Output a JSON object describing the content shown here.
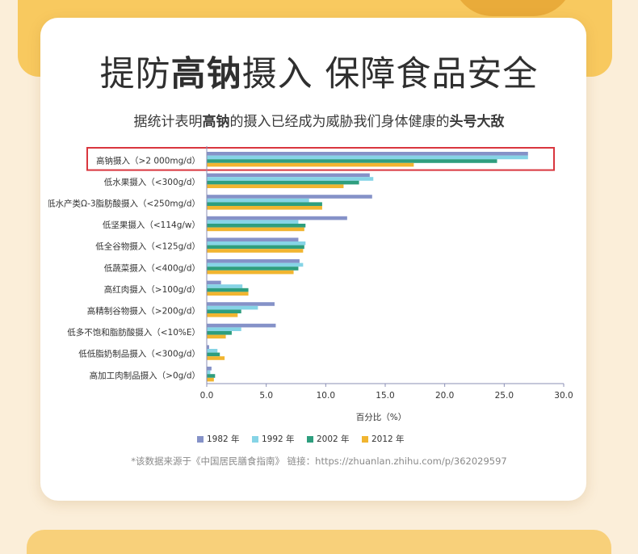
{
  "headline": {
    "part1": "提防",
    "highlight": "高钠",
    "part2": "摄入 保障食品安全"
  },
  "subline": {
    "part1": "据统计表明",
    "highlight1": "高钠",
    "part2": "的摄入已经成为威胁我们身体健康的",
    "highlight2": "头号大敌"
  },
  "source_note": "*该数据来源于《中国居民膳食指南》 链接：https://zhuanlan.zhihu.com/p/362029597",
  "colors": {
    "1982": "#8592c8",
    "1992": "#86d4e6",
    "2002": "#2e9e7e",
    "2012": "#f1b530",
    "highlight_box": "#d9363e",
    "axis": "#8b8fb5"
  },
  "chart_data": {
    "type": "bar",
    "orientation": "horizontal",
    "xlabel": "百分比（%）",
    "xlim": [
      0,
      30
    ],
    "xticks": [
      "0.0",
      "5.0",
      "10.0",
      "15.0",
      "20.0",
      "25.0",
      "30.0"
    ],
    "grid": false,
    "legend_position": "bottom",
    "highlighted_category": "高钠摄入（>2 000mg/d）",
    "categories": [
      "高钠摄入（>2 000mg/d）",
      "低水果摄入（<300g/d）",
      "低水产类Ω-3脂肪酸摄入（<250mg/d）",
      "低坚果摄入（<114g/w）",
      "低全谷物摄入（<125g/d）",
      "低蔬菜摄入（<400g/d）",
      "高红肉摄入（>100g/d）",
      "高精制谷物摄入（>200g/d）",
      "低多不饱和脂肪酸摄入（<10%E）",
      "低低脂奶制品摄入（<300g/d）",
      "高加工肉制品摄入（>0g/d）"
    ],
    "series": [
      {
        "name": "1982 年",
        "values": [
          27.0,
          13.7,
          13.9,
          11.8,
          7.7,
          7.8,
          1.2,
          5.7,
          5.8,
          0.2,
          0.4
        ]
      },
      {
        "name": "1992 年",
        "values": [
          27.0,
          14.0,
          8.6,
          7.7,
          8.3,
          8.1,
          3.0,
          4.3,
          2.9,
          0.9,
          0.3
        ]
      },
      {
        "name": "2002 年",
        "values": [
          24.4,
          12.8,
          9.7,
          8.3,
          8.2,
          7.7,
          3.5,
          2.9,
          2.1,
          1.1,
          0.7
        ]
      },
      {
        "name": "2012 年",
        "values": [
          17.4,
          11.5,
          9.7,
          8.2,
          8.1,
          7.3,
          3.5,
          2.6,
          1.6,
          1.5,
          0.6
        ]
      }
    ]
  }
}
